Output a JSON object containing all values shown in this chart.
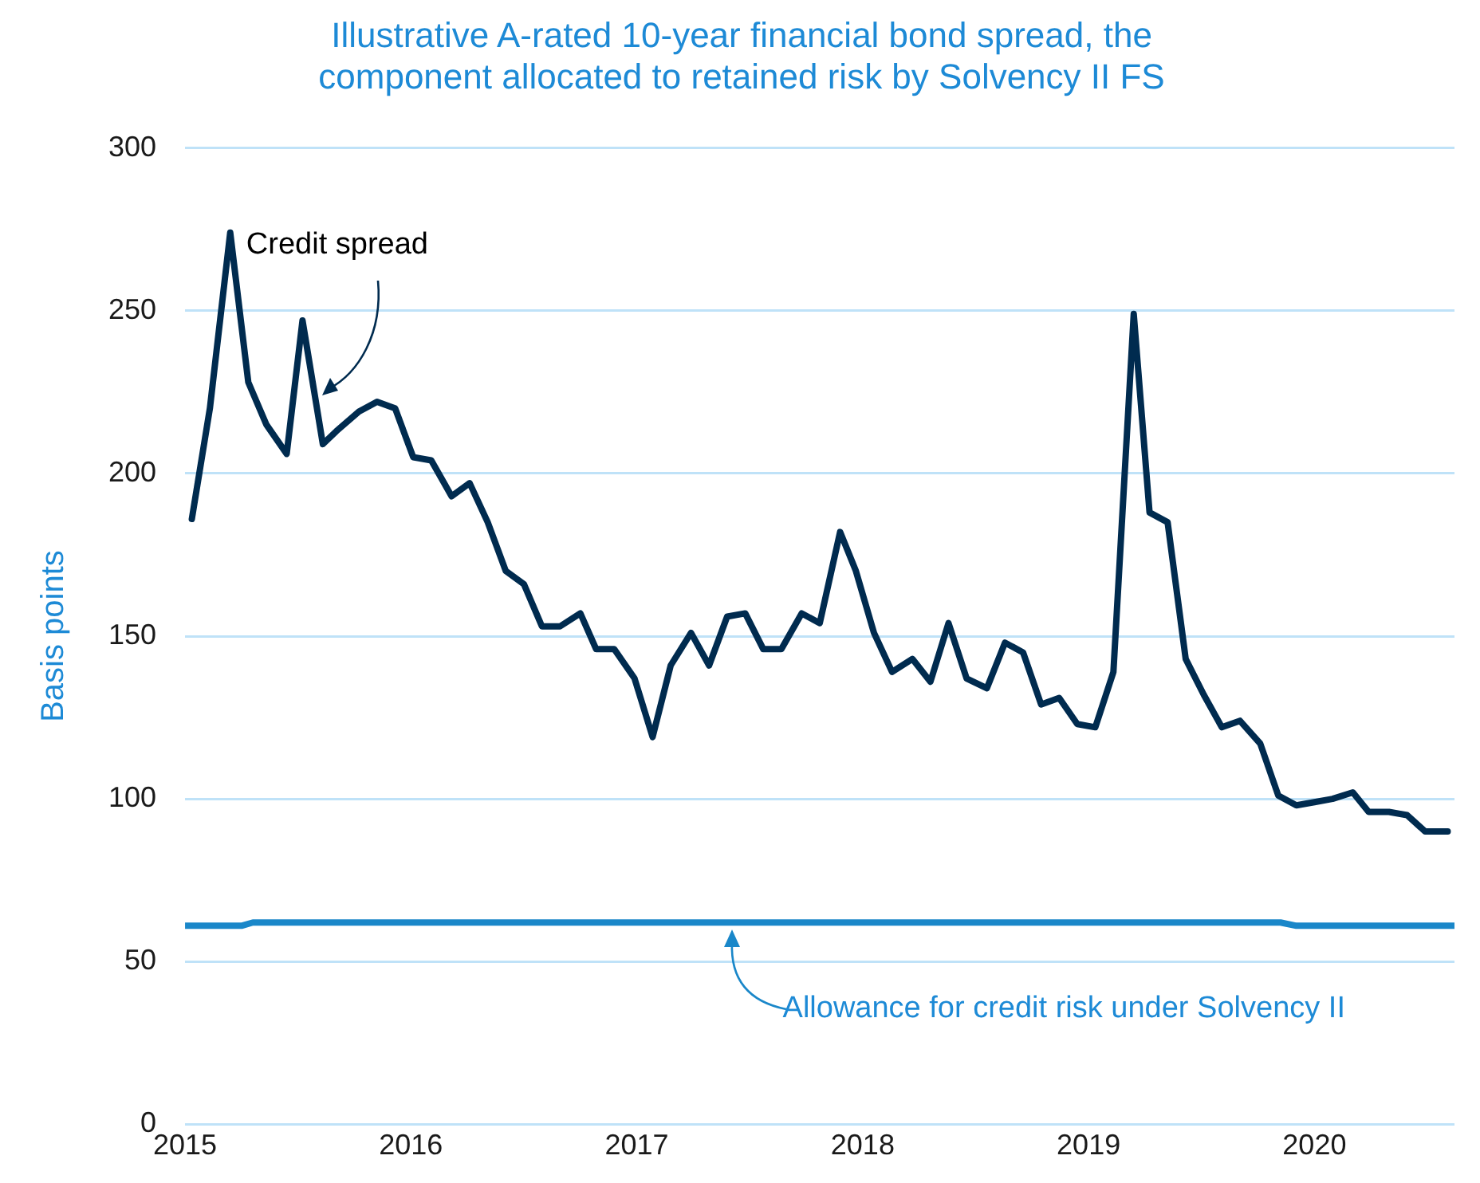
{
  "chart_data": {
    "type": "line",
    "title": "Illustrative A-rated 10-year financial bond spread, the component allocated to retained risk by Solvency II FS",
    "ylabel": "Basis points",
    "xlim": [
      2015,
      2020.62
    ],
    "xticks": [
      2015,
      2016,
      2017,
      2018,
      2019,
      2020
    ],
    "ylim": [
      0,
      300
    ],
    "yticks": [
      0,
      50,
      100,
      150,
      200,
      250,
      300
    ],
    "grid": "y",
    "legend": false,
    "marker": "none",
    "line_style": "solid",
    "annotations": [
      {
        "text": "Credit spread",
        "x": 2015.61,
        "y": 224
      },
      {
        "text": "Allowance for credit risk under Solvency II",
        "x": 2017.42,
        "y": 62
      }
    ],
    "series": [
      {
        "color": "#002b4f",
        "x": [
          2015.03,
          2015.11,
          2015.2,
          2015.28,
          2015.36,
          2015.45,
          2015.52,
          2015.61,
          2015.67,
          2015.77,
          2015.85,
          2015.93,
          2016.01,
          2016.09,
          2016.18,
          2016.26,
          2016.34,
          2016.42,
          2016.5,
          2016.58,
          2016.66,
          2016.75,
          2016.82,
          2016.9,
          2016.99,
          2017.07,
          2017.15,
          2017.24,
          2017.32,
          2017.4,
          2017.48,
          2017.56,
          2017.64,
          2017.73,
          2017.81,
          2017.9,
          2017.97,
          2018.05,
          2018.13,
          2018.22,
          2018.3,
          2018.38,
          2018.46,
          2018.55,
          2018.63,
          2018.71,
          2018.79,
          2018.87,
          2018.95,
          2019.03,
          2019.11,
          2019.2,
          2019.27,
          2019.35,
          2019.43,
          2019.51,
          2019.59,
          2019.67,
          2019.76,
          2019.84,
          2019.92,
          2020.0,
          2020.08,
          2020.17,
          2020.24,
          2020.33,
          2020.41,
          2020.49,
          2020.59
        ],
        "values": [
          186,
          220,
          274,
          228,
          215,
          206,
          247,
          209,
          213,
          219,
          222,
          220,
          205,
          204,
          193,
          197,
          185,
          170,
          166,
          153,
          153,
          157,
          146,
          146,
          137,
          119,
          141,
          151,
          141,
          156,
          157,
          146,
          146,
          157,
          154,
          182,
          170,
          151,
          139,
          143,
          136,
          154,
          137,
          134,
          148,
          145,
          129,
          131,
          123,
          122,
          139,
          249,
          188,
          185,
          143,
          132,
          122,
          124,
          117,
          101,
          98,
          99,
          100,
          102,
          96,
          96,
          95,
          90,
          90
        ]
      },
      {
        "color": "#1a87c9",
        "x": [
          2015,
          2015.25,
          2015.3,
          2019.85,
          2019.92,
          2020.62
        ],
        "values": [
          61,
          61,
          62,
          62,
          61,
          61
        ]
      }
    ]
  }
}
